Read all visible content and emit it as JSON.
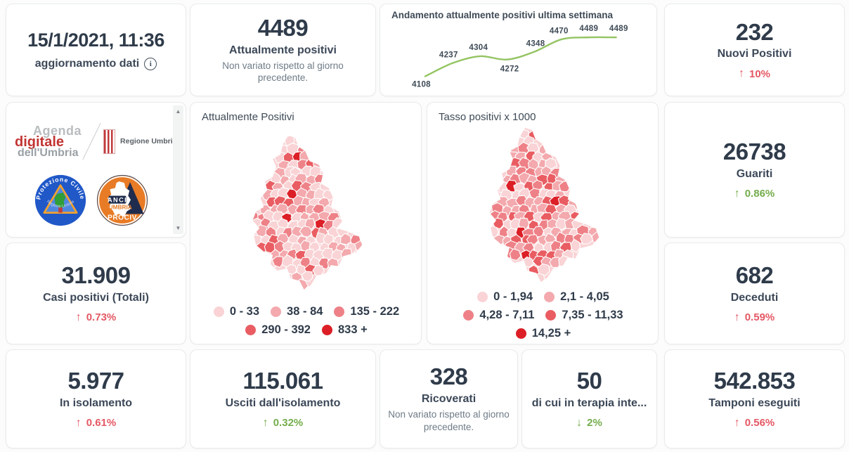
{
  "theme": {
    "red": "#e45864",
    "green": "#74ad4c",
    "dark_text": "#2f3b4a",
    "gray_text": "#6e7b87",
    "line_green": "#93c462",
    "map_palette": [
      "#f9d3d5",
      "#f3a9ad",
      "#ee8187",
      "#e95d62",
      "#dc1f26"
    ]
  },
  "header": {
    "date": "15/1/2021, 11:36",
    "update_label": "aggiornamento dati"
  },
  "stats": {
    "attualmente_positivi": {
      "value": "4489",
      "label": "Attualmente positivi",
      "note": "Non variato rispetto al giorno precedente."
    },
    "nuovi_positivi": {
      "value": "232",
      "label": "Nuovi Positivi",
      "arrow": "↑",
      "delta": "10%"
    },
    "guariti": {
      "value": "26738",
      "label": "Guariti",
      "arrow": "↑",
      "delta": "0.86%"
    },
    "casi_totali": {
      "value": "31.909",
      "label": "Casi positivi (Totali)",
      "arrow": "↑",
      "delta": "0.73%"
    },
    "deceduti": {
      "value": "682",
      "label": "Deceduti",
      "arrow": "↑",
      "delta": "0.59%"
    },
    "in_isolamento": {
      "value": "5.977",
      "label": "In isolamento",
      "arrow": "↑",
      "delta": "0.61%"
    },
    "usciti_isolamento": {
      "value": "115.061",
      "label": "Usciti dall'isolamento",
      "arrow": "↑",
      "delta": "0.32%"
    },
    "ricoverati": {
      "value": "328",
      "label": "Ricoverati",
      "note": "Non variato rispetto al giorno precedente."
    },
    "terapia_intensiva": {
      "value": "50",
      "label": "di cui in terapia inte...",
      "arrow": "↓",
      "delta": "2%"
    },
    "tamponi": {
      "value": "542.853",
      "label": "Tamponi eseguiti",
      "arrow": "↑",
      "delta": "0.56%"
    }
  },
  "chart_data": [
    {
      "type": "line",
      "title": "Andamento attualmente positivi ultima settimana",
      "values": [
        4108,
        4237,
        4304,
        4272,
        4348,
        4470,
        4489,
        4489
      ],
      "line_color": "#93c462",
      "data_labels": true,
      "axes": "hidden",
      "ylim": [
        4108,
        4489
      ]
    },
    {
      "type": "choropleth",
      "title": "Attualmente Positivi",
      "region": "Umbria",
      "legend": [
        {
          "label": "0 - 33",
          "color": "#f9d3d5"
        },
        {
          "label": "38 - 84",
          "color": "#f3a9ad"
        },
        {
          "label": "135 - 222",
          "color": "#ee8187"
        },
        {
          "label": "290 - 392",
          "color": "#e95d62"
        },
        {
          "label": "833 +",
          "color": "#dc1f26"
        }
      ]
    },
    {
      "type": "choropleth",
      "title": "Tasso positivi x 1000",
      "region": "Umbria",
      "legend": [
        {
          "label": "0 - 1,94",
          "color": "#f9d3d5"
        },
        {
          "label": "2,1 - 4,05",
          "color": "#f3a9ad"
        },
        {
          "label": "4,28 - 7,11",
          "color": "#ee8187"
        },
        {
          "label": "7,35 - 11,33",
          "color": "#e95d62"
        },
        {
          "label": "14,25 +",
          "color": "#dc1f26"
        }
      ]
    }
  ],
  "logos": {
    "agenda": {
      "line1": "Agenda",
      "line2": "digitale",
      "line3": "dell'Umbria"
    },
    "regione": {
      "name": "Regione Umbria"
    },
    "protezione": {
      "top": "Protezione Civile",
      "bottom": "Regione Umbria"
    },
    "anci": {
      "line1": "ANCI",
      "line2": "UMBRIA",
      "line3": "PROCIV"
    }
  }
}
